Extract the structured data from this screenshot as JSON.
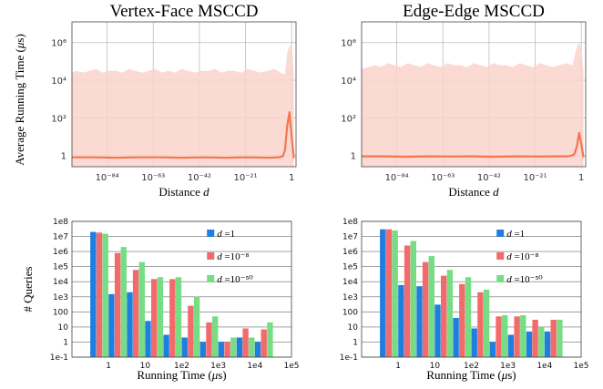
{
  "chart_data": [
    {
      "type": "area",
      "title": "Vertex-Face MSCCD",
      "xlabel": "Distance d",
      "ylabel": "Average Running Time (μs)",
      "x_scale": "log",
      "y_scale": "log",
      "x_ticks": [
        "10⁻⁸⁴",
        "10⁻⁶³",
        "10⁻⁴²",
        "10⁻²¹",
        "1"
      ],
      "x_tick_exponents": [
        -84,
        -63,
        -42,
        -21,
        0
      ],
      "y_ticks": [
        "1",
        "10²",
        "10⁴",
        "10⁶"
      ],
      "y_tick_exponents": [
        0,
        2,
        4,
        6
      ],
      "xlim_exponent": [
        -100,
        2
      ],
      "ylim_exponent": [
        -0.6,
        7.1
      ],
      "grid": true,
      "series": [
        {
          "name": "",
          "kind": "band-upper",
          "x_exponent": [
            -100,
            -98,
            -95,
            -92,
            -89,
            -86,
            -83,
            -80,
            -77,
            -74,
            -71,
            -68,
            -65,
            -62,
            -59,
            -56,
            -53,
            -50,
            -47,
            -44,
            -41,
            -38,
            -35,
            -32,
            -29,
            -26,
            -23,
            -20,
            -17,
            -14,
            -11,
            -8,
            -5,
            -3,
            -2,
            -1,
            0,
            1
          ],
          "y_log10": [
            4.4,
            4.5,
            4.4,
            4.5,
            4.6,
            4.4,
            4.5,
            4.5,
            4.4,
            4.6,
            4.5,
            4.4,
            4.5,
            4.6,
            4.4,
            4.5,
            4.4,
            4.6,
            4.5,
            4.4,
            4.5,
            4.5,
            4.6,
            4.4,
            4.5,
            4.5,
            4.4,
            4.6,
            4.5,
            4.4,
            4.5,
            4.6,
            4.4,
            4.3,
            5.5,
            5.8,
            5.9,
            4.2
          ]
        },
        {
          "name": "",
          "kind": "band-lower",
          "x_exponent": [
            -100,
            1
          ],
          "y_log10": [
            -0.6,
            -0.6
          ]
        },
        {
          "name": "",
          "kind": "mean-line",
          "x_exponent": [
            -100,
            -90,
            -80,
            -70,
            -60,
            -50,
            -40,
            -30,
            -20,
            -10,
            -6,
            -4,
            -3,
            -2,
            -1,
            0,
            1
          ],
          "y_log10": [
            -0.1,
            -0.1,
            -0.12,
            -0.1,
            -0.1,
            -0.12,
            -0.1,
            -0.12,
            -0.1,
            -0.12,
            -0.1,
            -0.05,
            0.3,
            1.6,
            2.3,
            1.0,
            -0.15
          ]
        }
      ]
    },
    {
      "type": "area",
      "title": "Edge-Edge MSCCD",
      "xlabel": "Distance d",
      "ylabel": "",
      "x_scale": "log",
      "y_scale": "log",
      "x_ticks": [
        "10⁻⁸⁴",
        "10⁻⁶³",
        "10⁻⁴²",
        "10⁻²¹",
        "1"
      ],
      "x_tick_exponents": [
        -84,
        -63,
        -42,
        -21,
        0
      ],
      "y_ticks": [
        "1",
        "10²",
        "10⁴",
        "10⁶"
      ],
      "y_tick_exponents": [
        0,
        2,
        4,
        6
      ],
      "xlim_exponent": [
        -100,
        2
      ],
      "ylim_exponent": [
        -0.6,
        7.1
      ],
      "grid": true,
      "series": [
        {
          "name": "",
          "kind": "band-upper",
          "x_exponent": [
            -100,
            -97,
            -94,
            -91,
            -88,
            -85,
            -82,
            -79,
            -76,
            -73,
            -70,
            -67,
            -64,
            -61,
            -58,
            -55,
            -52,
            -49,
            -46,
            -43,
            -40,
            -37,
            -34,
            -31,
            -28,
            -25,
            -22,
            -19,
            -16,
            -13,
            -10,
            -7,
            -4,
            -2,
            -1,
            0,
            1
          ],
          "y_log10": [
            4.6,
            4.7,
            4.8,
            4.7,
            4.9,
            4.8,
            4.7,
            4.9,
            4.8,
            4.7,
            4.9,
            4.8,
            4.7,
            4.9,
            4.8,
            4.8,
            4.7,
            4.9,
            4.8,
            4.7,
            4.9,
            4.8,
            4.8,
            4.7,
            4.9,
            4.8,
            4.7,
            4.9,
            4.8,
            4.7,
            4.8,
            4.9,
            4.8,
            5.8,
            6.0,
            5.6,
            4.4
          ]
        },
        {
          "name": "",
          "kind": "band-lower",
          "x_exponent": [
            -100,
            1
          ],
          "y_log10": [
            -0.6,
            -0.6
          ]
        },
        {
          "name": "",
          "kind": "mean-line",
          "x_exponent": [
            -100,
            -90,
            -80,
            -70,
            -60,
            -50,
            -40,
            -30,
            -20,
            -10,
            -6,
            -4,
            -3,
            -2,
            -1,
            0,
            1
          ],
          "y_log10": [
            -0.05,
            -0.05,
            -0.07,
            -0.05,
            -0.06,
            -0.05,
            -0.07,
            -0.05,
            -0.06,
            -0.05,
            -0.05,
            0.0,
            0.1,
            0.5,
            1.2,
            0.6,
            -0.1
          ]
        }
      ]
    },
    {
      "type": "bar",
      "title": "",
      "xlabel": "Running Time (μs)",
      "ylabel": "# Queries",
      "y_scale": "log",
      "x_ticks": [
        "1",
        "10",
        "1e2",
        "1e3",
        "1e4",
        "1e5"
      ],
      "y_ticks": [
        "1e-1",
        "1",
        "10",
        "100",
        "1e3",
        "1e4",
        "1e5",
        "1e6",
        "1e7",
        "1e8"
      ],
      "ylim": [
        0.1,
        100000000
      ],
      "grid": true,
      "legend": "top-right",
      "bin_edges_log10": [
        -0.5,
        0,
        0.5,
        1,
        1.5,
        2,
        2.5,
        3,
        3.5,
        4,
        4.5
      ],
      "series": [
        {
          "name": "d =1",
          "color": "#1f7ee0",
          "values": [
            20000000,
            1500,
            2000,
            25,
            3,
            2,
            1,
            1,
            2,
            1
          ]
        },
        {
          "name": "d =10⁻⁸",
          "color": "#f26b6b",
          "values": [
            18000000,
            800000,
            60000,
            15000,
            15000,
            250,
            20,
            1,
            8,
            7
          ]
        },
        {
          "name": "d =10⁻⁵⁰",
          "color": "#77dd85",
          "values": [
            15000000,
            2000000,
            200000,
            20000,
            20000,
            1000,
            50,
            2,
            2,
            20
          ]
        }
      ]
    },
    {
      "type": "bar",
      "title": "",
      "xlabel": "Running Time (μs)",
      "ylabel": "",
      "y_scale": "log",
      "x_ticks": [
        "1",
        "10",
        "1e2",
        "1e3",
        "1e4",
        "1e5"
      ],
      "y_ticks": [
        "1e-1",
        "1",
        "10",
        "100",
        "1e3",
        "1e4",
        "1e5",
        "1e6",
        "1e7",
        "1e8"
      ],
      "ylim": [
        0.1,
        100000000
      ],
      "grid": true,
      "legend": "top-right",
      "bin_edges_log10": [
        -0.5,
        0,
        0.5,
        1,
        1.5,
        2,
        2.5,
        3,
        3.5,
        4,
        4.5
      ],
      "series": [
        {
          "name": "d =1",
          "color": "#1f7ee0",
          "values": [
            30000000,
            6000,
            5000,
            300,
            40,
            8,
            1,
            3,
            5,
            5
          ]
        },
        {
          "name": "d =10⁻⁸",
          "color": "#f26b6b",
          "values": [
            30000000,
            2500000,
            200000,
            25000,
            7000,
            2000,
            50,
            50,
            30,
            30
          ]
        },
        {
          "name": "d =10⁻⁵⁰",
          "color": "#77dd85",
          "values": [
            25000000,
            5000000,
            500000,
            60000,
            20000,
            3000,
            60,
            60,
            10,
            30
          ]
        }
      ]
    }
  ]
}
